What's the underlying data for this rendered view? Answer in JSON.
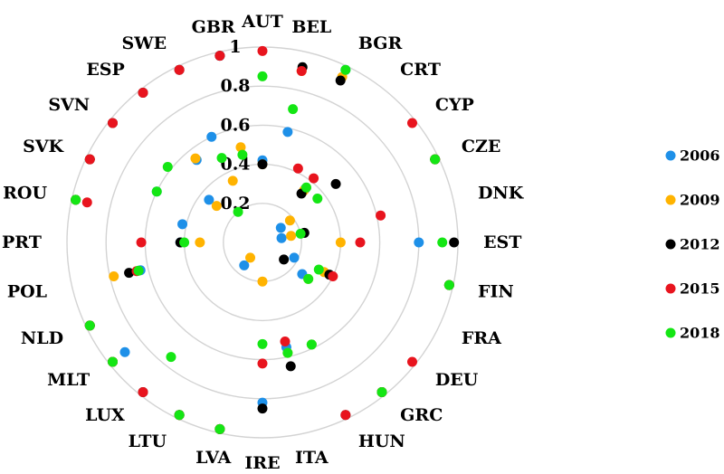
{
  "chart_data": {
    "type": "scatter",
    "subtype": "polar",
    "title": "",
    "rlim": [
      0,
      1
    ],
    "rticks": [
      {
        "value": 0.2,
        "label": "0.2"
      },
      {
        "value": 0.4,
        "label": "0.4"
      },
      {
        "value": 0.6,
        "label": "0.6"
      },
      {
        "value": 0.8,
        "label": "0.8"
      },
      {
        "value": 1.0,
        "label": "1"
      }
    ],
    "grid": true,
    "legend_position": "right",
    "categories": [
      "AUT",
      "BEL",
      "BGR",
      "CRT",
      "CYP",
      "CZE",
      "DNK",
      "EST",
      "FIN",
      "FRA",
      "DEU",
      "GRC",
      "HUN",
      "ITA",
      "IRE",
      "LVA",
      "LTU",
      "LUX",
      "MLT",
      "NLD",
      "POL",
      "PRT",
      "ROU",
      "SVK",
      "SVN",
      "ESP",
      "SWE",
      "GBR"
    ],
    "series": [
      {
        "name": "2006",
        "color": "#1e90e8",
        "values": [
          0.42,
          0.58,
          0.98,
          0.35,
          0.12,
          0.98,
          0.1,
          0.8,
          0.98,
          0.18,
          0.26,
          0.98,
          0.58,
          0.55,
          0.82,
          0.98,
          0.98,
          0.15,
          0.9,
          0.98,
          0.64,
          0.42,
          0.42,
          0.6,
          0.35,
          0.54,
          0.6,
          0.98
        ]
      },
      {
        "name": "2009",
        "color": "#ffb300",
        "values": [
          0.4,
          0.9,
          0.94,
          0.34,
          0.18,
          0.98,
          0.15,
          0.4,
          0.98,
          0.35,
          0.3,
          0.98,
          0.58,
          0.58,
          0.2,
          0.98,
          0.98,
          0.1,
          0.98,
          0.98,
          0.78,
          0.32,
          0.98,
          0.98,
          0.3,
          0.55,
          0.35,
          0.5
        ]
      },
      {
        "name": "2012",
        "color": "#000000",
        "values": [
          0.4,
          0.92,
          0.92,
          0.32,
          0.48,
          0.98,
          0.22,
          0.98,
          0.98,
          0.38,
          0.14,
          0.98,
          0.98,
          0.65,
          0.85,
          0.98,
          0.98,
          0.98,
          0.98,
          0.98,
          0.7,
          0.42,
          0.98,
          0.98,
          0.98,
          0.98,
          0.98,
          0.98
        ]
      },
      {
        "name": "2015",
        "color": "#e8141e",
        "values": [
          0.98,
          0.9,
          0.42,
          0.42,
          0.98,
          0.98,
          0.62,
          0.5,
          0.98,
          0.4,
          0.98,
          0.98,
          0.98,
          0.52,
          0.62,
          0.98,
          0.98,
          0.98,
          0.98,
          0.98,
          0.66,
          0.62,
          0.92,
          0.98,
          0.98,
          0.98,
          0.98,
          0.98
        ]
      },
      {
        "name": "2018",
        "color": "#14e614",
        "values": [
          0.85,
          0.7,
          0.98,
          0.36,
          0.36,
          0.98,
          0.2,
          0.92,
          0.98,
          0.32,
          0.3,
          0.98,
          0.58,
          0.58,
          0.52,
          0.98,
          0.98,
          0.75,
          0.98,
          0.98,
          0.65,
          0.4,
          0.98,
          0.6,
          0.62,
          0.2,
          0.48,
          0.46
        ]
      }
    ]
  }
}
